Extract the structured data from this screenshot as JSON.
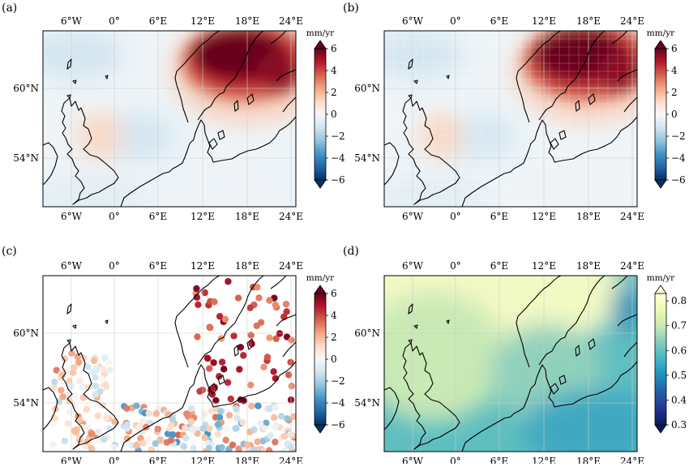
{
  "lon_ticks": [
    "6°W",
    "0°",
    "6°E",
    "12°E",
    "18°E",
    "24°E"
  ],
  "lat_ticks": [
    "60°N",
    "54°N"
  ],
  "colors": {
    "rdbu": [
      "#053061",
      "#2166ac",
      "#4393c3",
      "#92c5de",
      "#d1e5f0",
      "#f7f7f7",
      "#fddbc7",
      "#f4a582",
      "#d6604d",
      "#b2182b",
      "#67001f"
    ],
    "ylgnbu": [
      "#081d58",
      "#253494",
      "#225ea8",
      "#1d91c0",
      "#41b6c4",
      "#7fcdbb",
      "#c7e9b4",
      "#edf8b1",
      "#ffffd9"
    ],
    "coastline": "#000000",
    "grid": "#cccccc"
  },
  "panels": [
    {
      "label": "(a)",
      "unit": "mm/yr",
      "cbar_ticks": [
        "6",
        "4",
        "2",
        "0",
        "−2",
        "−4",
        "−6"
      ],
      "cbar_values": [
        6,
        4,
        2,
        0,
        -2,
        -4,
        -6
      ],
      "cmap": "rdbu",
      "kind": "smooth"
    },
    {
      "label": "(b)",
      "unit": "mm/yr",
      "cbar_ticks": [
        "6",
        "4",
        "2",
        "0",
        "−2",
        "−4",
        "−6"
      ],
      "cbar_values": [
        6,
        4,
        2,
        0,
        -2,
        -4,
        -6
      ],
      "cmap": "rdbu",
      "kind": "gridded"
    },
    {
      "label": "(c)",
      "unit": "mm/yr",
      "cbar_ticks": [
        "6",
        "4",
        "2",
        "0",
        "−2",
        "−4",
        "−6"
      ],
      "cbar_values": [
        6,
        4,
        2,
        0,
        -2,
        -4,
        -6
      ],
      "cmap": "rdbu",
      "kind": "stations"
    },
    {
      "label": "(d)",
      "unit": "mm/yr",
      "cbar_ticks": [
        "0.8",
        "0.7",
        "0.6",
        "0.5",
        "0.4",
        "0.3"
      ],
      "cbar_values": [
        0.8,
        0.7,
        0.6,
        0.5,
        0.4,
        0.3
      ],
      "cmap": "ylgnbu",
      "kind": "smooth-uncertainty"
    }
  ]
}
